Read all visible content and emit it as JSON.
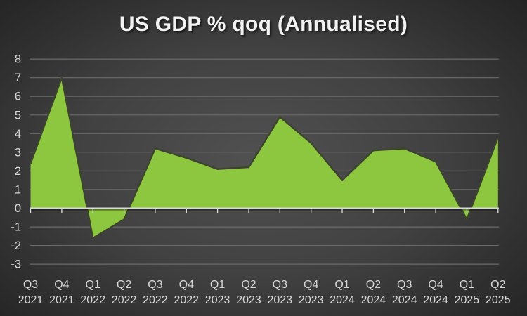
{
  "chart_data": {
    "type": "area",
    "title": "US GDP % qoq (Annualised)",
    "categories": [
      "Q3 2021",
      "Q4 2021",
      "Q1 2022",
      "Q2 2022",
      "Q3 2022",
      "Q4 2022",
      "Q1 2023",
      "Q2 2023",
      "Q3 2023",
      "Q4 2023",
      "Q1 2024",
      "Q2 2024",
      "Q3 2024",
      "Q4 2024",
      "Q1 2025",
      "Q2 2025"
    ],
    "values": [
      2.4,
      7.0,
      -1.6,
      -0.6,
      3.2,
      2.7,
      2.1,
      2.2,
      4.9,
      3.5,
      1.5,
      3.1,
      3.2,
      2.5,
      -0.6,
      3.8
    ],
    "xlabel": "",
    "ylabel": "",
    "ylim": [
      -3,
      8
    ],
    "yticks": [
      8,
      7,
      6,
      5,
      4,
      3,
      2,
      1,
      0,
      -1,
      -2,
      -3
    ],
    "grid": true,
    "legend": "none",
    "colors": {
      "fill": "#8dc63f",
      "outline": "#3d442e",
      "background_center": "#515151",
      "background_edge": "#232323",
      "gridline": "#6a6a6a",
      "axis_line": "#d9d9d9",
      "labels": "#d6d6d6",
      "title": "#f2f2f2"
    }
  }
}
